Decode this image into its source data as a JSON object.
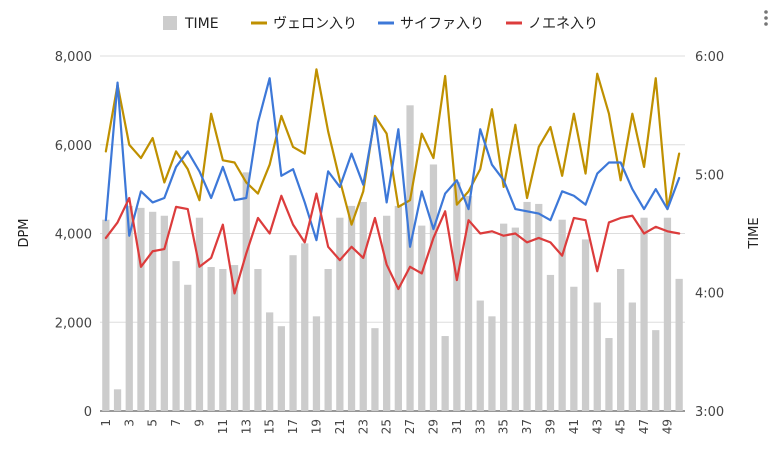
{
  "chart_data": {
    "type": "combo",
    "left_axis": {
      "title": "DPM",
      "min": 0,
      "max": 8000,
      "ticks": [
        0,
        2000,
        4000,
        6000,
        8000
      ],
      "tick_labels": [
        "0",
        "2,000",
        "4,000",
        "6,000",
        "8,000"
      ]
    },
    "right_axis": {
      "title": "TIME",
      "min": 180,
      "max": 360,
      "ticks": [
        180,
        240,
        300,
        360
      ],
      "tick_labels": [
        "3:00",
        "4:00",
        "5:00",
        "6:00"
      ]
    },
    "x_axis": {
      "categories": [
        1,
        2,
        3,
        4,
        5,
        6,
        7,
        8,
        9,
        10,
        11,
        12,
        13,
        14,
        15,
        16,
        17,
        18,
        19,
        20,
        21,
        22,
        23,
        24,
        25,
        26,
        27,
        28,
        29,
        30,
        31,
        32,
        33,
        34,
        35,
        36,
        37,
        38,
        39,
        40,
        41,
        42,
        43,
        44,
        45,
        46,
        47,
        48,
        49,
        50
      ],
      "tick_labels": [
        "1",
        "3",
        "5",
        "7",
        "9",
        "11",
        "13",
        "15",
        "17",
        "19",
        "21",
        "23",
        "25",
        "27",
        "29",
        "31",
        "33",
        "35",
        "37",
        "39",
        "41",
        "43",
        "45",
        "47",
        "49"
      ]
    },
    "grid": true,
    "legend_position": "top",
    "legend": [
      "TIME",
      "ヴェロン入り",
      "サイファ入り",
      "ノエネ入り"
    ],
    "bars": {
      "name": "TIME",
      "axis": "right",
      "color": "#cccccc",
      "values": [
        277,
        191,
        284,
        283,
        281,
        279,
        256,
        244,
        278,
        253,
        252,
        254,
        301,
        252,
        230,
        223,
        259,
        265,
        228,
        252,
        278,
        284,
        286,
        222,
        279,
        284,
        335,
        274,
        305,
        218,
        296,
        289,
        236,
        228,
        275,
        273,
        286,
        285,
        249,
        277,
        243,
        267,
        235,
        217,
        252,
        235,
        278,
        221,
        278,
        247
      ]
    },
    "series": [
      {
        "name": "ヴェロン入り",
        "axis": "left",
        "color": "#bf9000",
        "values": [
          5850,
          7350,
          6000,
          5700,
          6150,
          5150,
          5850,
          5450,
          4750,
          6700,
          5650,
          5600,
          5150,
          4900,
          5550,
          6650,
          5950,
          5800,
          7700,
          6300,
          5200,
          4200,
          4950,
          6650,
          6250,
          4600,
          4750,
          6250,
          5700,
          7550,
          4650,
          4950,
          5450,
          6800,
          5050,
          6450,
          4800,
          5950,
          6400,
          5300,
          6700,
          5350,
          7600,
          6700,
          5200,
          6700,
          5500,
          7500,
          4550,
          5800
        ]
      },
      {
        "name": "サイファ入り",
        "axis": "left",
        "color": "#3d78d8",
        "values": [
          4300,
          7400,
          3950,
          4950,
          4700,
          4800,
          5500,
          5850,
          5400,
          4800,
          5500,
          4750,
          4800,
          6500,
          7500,
          5300,
          5450,
          4700,
          3850,
          5400,
          5050,
          5800,
          5100,
          6600,
          4700,
          6350,
          3700,
          4950,
          4100,
          4900,
          5200,
          4550,
          6350,
          5550,
          5200,
          4550,
          4500,
          4450,
          4300,
          4950,
          4850,
          4650,
          5350,
          5600,
          5600,
          5000,
          4550,
          5000,
          4550,
          5250
        ]
      },
      {
        "name": "ノエネ入り",
        "axis": "left",
        "color": "#dc3c3c",
        "values": [
          3900,
          4250,
          4800,
          3250,
          3600,
          3650,
          4600,
          4550,
          3250,
          3450,
          4200,
          2650,
          3550,
          4350,
          4000,
          4850,
          4200,
          3800,
          4900,
          3700,
          3400,
          3700,
          3450,
          4350,
          3300,
          2750,
          3250,
          3100,
          3900,
          4500,
          2950,
          4300,
          4000,
          4050,
          3950,
          4000,
          3800,
          3900,
          3800,
          3500,
          4350,
          4300,
          3150,
          4250,
          4350,
          4400,
          4000,
          4150,
          4050,
          4000
        ]
      }
    ]
  }
}
